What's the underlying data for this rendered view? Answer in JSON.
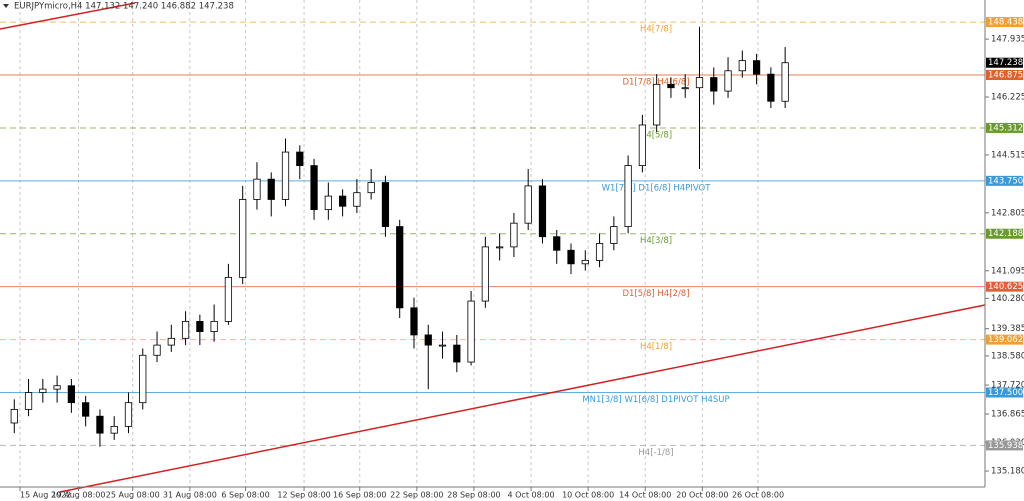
{
  "chart_data": {
    "type": "candlestick",
    "title": "EURJPYmicro,H4  147.132 147.240 146.882 147.238",
    "open": [
      136.6,
      137.0,
      137.5,
      137.6,
      137.7,
      137.2,
      136.8,
      136.3,
      136.5,
      137.2,
      138.6,
      138.9,
      139.1,
      139.6,
      139.3,
      139.6,
      140.9,
      143.2,
      143.8,
      143.2,
      144.6,
      144.2,
      142.9,
      143.3,
      143.0,
      143.4,
      143.7,
      142.4,
      140.0,
      139.2,
      138.9,
      138.9,
      138.4,
      140.2,
      141.8,
      141.8,
      142.5,
      143.6,
      142.1,
      141.7,
      141.3,
      141.4,
      141.9,
      142.4,
      144.2,
      145.4,
      146.6,
      146.5,
      146.5,
      146.8,
      146.4,
      147.0,
      147.3,
      146.9,
      146.1
    ],
    "high": [
      137.3,
      137.9,
      137.9,
      138.0,
      137.9,
      137.4,
      137.0,
      136.8,
      137.5,
      138.8,
      139.3,
      139.5,
      139.9,
      139.8,
      140.1,
      141.3,
      143.6,
      144.3,
      144.0,
      145.0,
      144.8,
      144.4,
      143.7,
      143.5,
      143.8,
      144.1,
      143.9,
      142.6,
      140.3,
      139.5,
      139.3,
      139.2,
      140.5,
      142.1,
      142.2,
      142.8,
      144.1,
      143.8,
      142.3,
      141.9,
      141.7,
      142.2,
      142.7,
      144.5,
      145.7,
      146.9,
      146.8,
      146.9,
      148.3,
      147.1,
      147.4,
      147.6,
      147.5,
      147.1,
      147.7
    ],
    "low": [
      136.3,
      136.8,
      137.2,
      137.2,
      136.9,
      136.5,
      135.9,
      136.1,
      136.3,
      137.0,
      138.4,
      138.7,
      138.9,
      138.9,
      139.0,
      139.5,
      140.7,
      142.9,
      142.7,
      143.0,
      143.8,
      142.6,
      142.6,
      142.7,
      142.8,
      143.2,
      142.1,
      139.7,
      138.8,
      137.6,
      138.5,
      138.1,
      138.3,
      140.0,
      141.4,
      141.5,
      142.3,
      141.9,
      141.3,
      141.0,
      141.1,
      141.2,
      141.7,
      142.2,
      144.0,
      145.2,
      146.2,
      146.2,
      144.1,
      146.0,
      146.2,
      146.8,
      146.6,
      145.9,
      145.9
    ],
    "close": [
      137.0,
      137.5,
      137.6,
      137.7,
      137.2,
      136.8,
      136.3,
      136.5,
      137.2,
      138.6,
      138.9,
      139.1,
      139.6,
      139.3,
      139.6,
      140.9,
      143.2,
      143.8,
      143.2,
      144.6,
      144.2,
      142.9,
      143.3,
      143.0,
      143.4,
      143.7,
      142.4,
      140.0,
      139.2,
      138.9,
      138.9,
      138.4,
      140.2,
      141.8,
      141.8,
      142.5,
      143.6,
      142.1,
      141.7,
      141.3,
      141.4,
      141.9,
      142.4,
      144.2,
      145.4,
      146.6,
      146.5,
      146.5,
      146.8,
      146.4,
      147.0,
      147.3,
      146.9,
      146.1,
      147.238
    ],
    "xlim": [
      -1,
      68
    ],
    "xticks": [
      {
        "value": 0.4,
        "label": "15 Aug 2022"
      },
      {
        "value": 4.5,
        "label": "19 Aug 08:00"
      },
      {
        "value": 8.3,
        "label": "25 Aug 08:00"
      },
      {
        "value": 12.3,
        "label": "31 Aug 08:00"
      },
      {
        "value": 16.2,
        "label": "6 Sep 08:00"
      },
      {
        "value": 20.3,
        "label": "12 Sep 08:00"
      },
      {
        "value": 24.2,
        "label": "16 Sep 08:00"
      },
      {
        "value": 28.2,
        "label": "22 Sep 08:00"
      },
      {
        "value": 32.2,
        "label": "28 Sep 08:00"
      },
      {
        "value": 36.2,
        "label": "4 Oct 08:00"
      },
      {
        "value": 40.2,
        "label": "10 Oct 08:00"
      },
      {
        "value": 44.2,
        "label": "14 Oct 08:00"
      },
      {
        "value": 48.2,
        "label": "20 Oct 08:00"
      },
      {
        "value": 52.1,
        "label": "26 Oct 08:00"
      }
    ],
    "ylim": [
      134.71,
      149.09
    ],
    "yticks": [
      147.935,
      146.225,
      144.515,
      142.805,
      141.095,
      {
        "value": 140.28,
        "label": "140.280"
      },
      139.385,
      {
        "value": 138.58,
        "label": "138.580"
      },
      {
        "value": 137.72,
        "label": "137.720"
      },
      136.865,
      {
        "value": 136.03,
        "label": "136.030"
      },
      {
        "value": 135.18,
        "label": "135.180"
      }
    ],
    "grid": true,
    "current_price": 147.238,
    "levels": [
      {
        "name": "H4[7/8]",
        "price": 148.438,
        "color": "#f0a030",
        "dashed": true
      },
      {
        "name": "D1[7/8] H4[6/8]",
        "price": 146.875,
        "color": "#e0602a",
        "dashed": false
      },
      {
        "name": "H4[5/8]",
        "price": 145.312,
        "color": "#6a9a2a",
        "dashed": true
      },
      {
        "name": "W1[7/8] D1[6/8] H4PIVOT",
        "price": {
          "value": 143.75,
          "label": "143.750"
        },
        "color": "#3a9ad9",
        "dashed": false
      },
      {
        "name": "H4[3/8]",
        "price": 142.188,
        "color": "#6a9a2a",
        "dashed": true
      },
      {
        "name": "D1[5/8] H4[2/8]",
        "price": 140.625,
        "color": "#e0603a",
        "dashed": false
      },
      {
        "name": "H4[1/8]",
        "price": 139.062,
        "color": "#f0a030",
        "dashed": true
      },
      {
        "name": "MN1[3/8] W1[6/8] D1PIVOT H4SUP",
        "price": {
          "value": 137.5,
          "label": "137.500"
        },
        "color": "#3a9ad9",
        "dashed": false
      },
      {
        "name": "H4[-1/8]",
        "price": 135.938,
        "color": "#999999",
        "dashed": true
      }
    ]
  }
}
